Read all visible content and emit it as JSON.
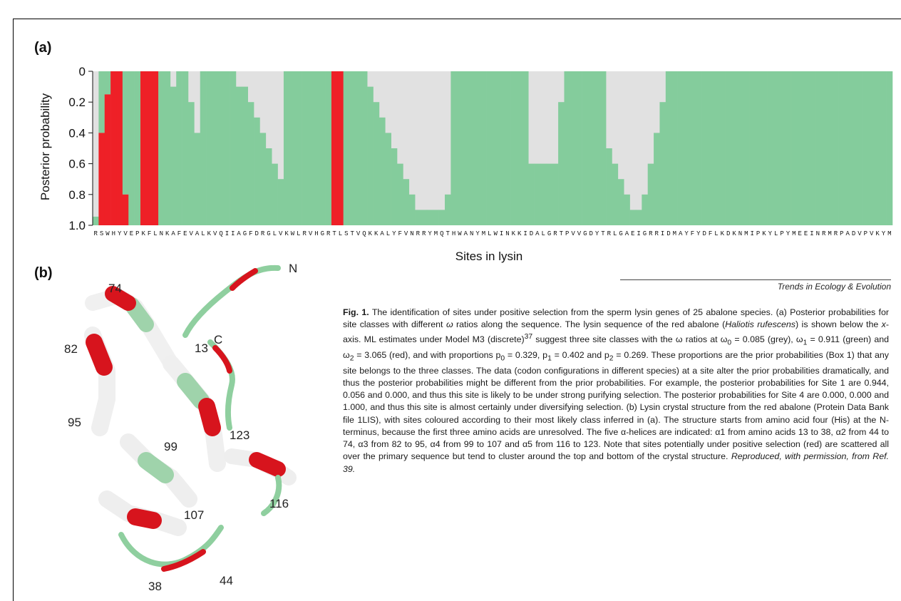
{
  "panel_a_label": "(a)",
  "panel_b_label": "(b)",
  "journal": "Trends in Ecology & Evolution",
  "colors": {
    "grey": "#e1e1e1",
    "green": "#84cc9c",
    "red": "#ee2027",
    "helix_white": "#f1f1f1"
  },
  "chart_data": {
    "type": "bar",
    "stacked": true,
    "ylabel": "Posterior probability",
    "xlabel": "Sites in lysin",
    "yticks": [
      "0",
      "0.2",
      "0.4",
      "0.6",
      "0.8",
      "1.0"
    ],
    "ylim": [
      0,
      1
    ],
    "y_inverted": true,
    "sequence": "RSWHYVEPKFLNKAFEVALKVQIIAGFDRGLVKWLRVHGRTLSTVQKKALYFVNRRYMQTHWANYMLWINKKIDALGRTPVVGDYTRLGAEIGRRIDMAYFYDFLKDKNMIPKYLPYMEEINRMRPADVPVKYM",
    "series": [
      {
        "name": "grey",
        "values": [
          0.944,
          0.0,
          0.0,
          0.0,
          0.0,
          0.0,
          0.0,
          0.0,
          0.0,
          0.0,
          0.0,
          0.0,
          0.0,
          0.1,
          0.0,
          0.0,
          0.2,
          0.4,
          0.0,
          0.0,
          0.0,
          0.0,
          0.0,
          0.0,
          0.1,
          0.1,
          0.2,
          0.3,
          0.4,
          0.5,
          0.6,
          0.7,
          0.0,
          0.0,
          0.0,
          0.0,
          0.0,
          0.0,
          0.0,
          0.0,
          0.0,
          0.0,
          0.0,
          0.0,
          0.0,
          0.0,
          0.1,
          0.2,
          0.3,
          0.4,
          0.5,
          0.6,
          0.7,
          0.8,
          0.9,
          0.9,
          0.9,
          0.9,
          0.9,
          0.8,
          0.0,
          0.0,
          0.0,
          0.0,
          0.0,
          0.0,
          0.0,
          0.0,
          0.0,
          0.0,
          0.0,
          0.0,
          0.0,
          0.6,
          0.6,
          0.6,
          0.6,
          0.6,
          0.2,
          0.0,
          0.0,
          0.0,
          0.0,
          0.0,
          0.0,
          0.0,
          0.5,
          0.6,
          0.7,
          0.8,
          0.9,
          0.9,
          0.8,
          0.6,
          0.4,
          0.2,
          0.0,
          0.0,
          0.0,
          0.0,
          0.0,
          0.0,
          0.0,
          0.0,
          0.0,
          0.0,
          0.0,
          0.0,
          0.0,
          0.0,
          0.0,
          0.0,
          0.0,
          0.0,
          0.0,
          0.0,
          0.0,
          0.0,
          0.0,
          0.0,
          0.0,
          0.0,
          0.0,
          0.0,
          0.0,
          0.0,
          0.0,
          0.0,
          0.0,
          0.0,
          0.0,
          0.0,
          0.0,
          0.0,
          0.0,
          0.0
        ]
      },
      {
        "name": "green",
        "values": [
          0.056,
          0.0,
          0.0,
          0.0,
          0.0,
          0.0,
          0.0,
          0.0,
          0.0,
          0.0,
          0.0,
          0.0,
          0.0,
          0.0,
          0.0,
          0.0,
          0.0,
          0.0,
          0.0,
          0.0,
          0.0,
          0.0,
          0.0,
          0.0,
          0.0,
          0.0,
          0.0,
          0.0,
          0.0,
          0.0,
          0.0,
          0.0,
          0.0,
          0.0,
          0.0,
          0.0,
          0.0,
          0.0,
          0.0,
          0.0,
          0.0,
          0.0,
          0.0,
          0.0,
          0.0,
          0.0,
          0.0,
          0.0,
          0.0,
          0.0,
          0.0,
          0.0,
          0.0,
          0.0,
          0.0,
          0.0,
          0.0,
          0.0,
          0.0,
          0.0,
          0.0,
          0.0,
          0.0,
          0.0,
          0.0,
          0.0,
          0.0,
          0.0,
          0.0,
          0.0,
          0.0,
          0.0,
          0.0,
          0.0,
          0.0,
          0.0,
          0.0,
          0.0,
          0.0,
          0.0,
          0.0,
          0.0,
          0.0,
          0.0,
          0.0,
          0.0,
          0.0,
          0.0,
          0.0,
          0.0,
          0.0,
          0.0,
          0.0,
          0.0,
          0.0,
          0.0,
          0.0,
          0.0,
          0.0,
          0.0,
          0.0,
          0.0,
          0.0,
          0.0,
          0.0,
          0.0,
          0.0,
          0.0,
          0.0,
          0.0,
          0.0,
          0.0,
          0.0,
          0.0,
          0.0,
          0.0,
          0.0,
          0.0,
          0.0,
          0.0,
          0.0,
          0.0,
          0.0,
          0.0,
          0.0,
          0.0,
          0.0,
          0.0,
          0.0,
          0.0,
          0.0,
          0.0,
          0.0,
          0.0,
          0.0,
          0.0
        ]
      },
      {
        "name": "red",
        "values": [
          0.0,
          0.6,
          0.85,
          1.0,
          1.0,
          0.2,
          0.0,
          0.0,
          1.0,
          1.0,
          1.0,
          0.0,
          0.0,
          0.0,
          0.0,
          0.0,
          0.0,
          0.0,
          0.0,
          0.0,
          0.0,
          0.0,
          0.0,
          0.0,
          0.0,
          0.0,
          0.0,
          0.0,
          0.0,
          0.0,
          0.0,
          0.0,
          0.0,
          0.0,
          0.0,
          0.0,
          0.0,
          0.0,
          0.0,
          0.0,
          1.0,
          1.0,
          0.0,
          0.0,
          0.0,
          0.0,
          0.0,
          0.0,
          0.0,
          0.0,
          0.0,
          0.0,
          0.0,
          0.0,
          0.0,
          0.0,
          0.0,
          0.0,
          0.0,
          0.0,
          0.0,
          0.0,
          0.0,
          0.0,
          0.0,
          0.0,
          0.0,
          0.0,
          0.0,
          0.0,
          0.0,
          0.0,
          0.0,
          0.0,
          0.0,
          0.0,
          0.0,
          0.0,
          0.0,
          0.0,
          0.0,
          0.0,
          0.0,
          0.0,
          0.0,
          0.0,
          0.0,
          0.0,
          0.0,
          0.0,
          0.0,
          0.0,
          0.0,
          0.0,
          0.0,
          0.0,
          0.0,
          0.0,
          0.0,
          0.0,
          0.0,
          0.0,
          0.0,
          0.0,
          0.0,
          0.0,
          0.0,
          0.0,
          0.0,
          0.0,
          0.0,
          0.0,
          0.0,
          0.0,
          0.0,
          0.0,
          0.0,
          0.0,
          0.0,
          0.0,
          0.0,
          0.0,
          0.0,
          0.0,
          0.0,
          0.0,
          0.0,
          0.0,
          0.0,
          0.0,
          0.0,
          0.0,
          0.0,
          0.0,
          0.0,
          0.0,
          0.0
        ]
      }
    ]
  },
  "structure_labels": [
    "74",
    "N",
    "13",
    "C",
    "82",
    "95",
    "99",
    "123",
    "116",
    "107",
    "38",
    "44"
  ],
  "caption": {
    "fig": "Fig. 1.",
    "p1": " The identification of sites under positive selection from the sperm lysin genes of 25 abalone species. (a) Posterior probabilities for site classes with different ",
    "omega": "ω",
    "p2": " ratios along the sequence. The lysin sequence of the red abalone (",
    "species": "Haliotis rufescens",
    "p3": ") is shown below the ",
    "xaxis": "x",
    "p4": "-axis. ML estimates under Model M3 (discrete)",
    "ref37": "37",
    "p5": " suggest three site classes with the ω ratios at ω",
    "s0": "0",
    "p6": " = 0.085 (grey), ω",
    "s1": "1",
    "p7": " = 0.911 (green) and ω",
    "s2": "2",
    "p8": " = 3.065 (red), and with proportions p",
    "p9": " = 0.329, p",
    "p10": " = 0.402 and p",
    "p11": " = 0.269. These proportions are the prior probabilities (Box 1) that any site belongs to the three classes. The data (codon configurations in different species) at a site alter the prior probabilities dramatically, and thus the posterior probabilities might be different from the prior probabilities. For example, the posterior probabilities for Site 1 are 0.944, 0.056 and 0.000, and thus this site is likely to be under strong purifying selection. The posterior probabilities for Site 4 are 0.000, 0.000 and 1.000, and thus this site is almost certainly under diversifying selection. (b) Lysin crystal structure from the red abalone (Protein Data Bank file 1LIS), with sites coloured according to their most likely class inferred in (a). The structure starts from amino acid four (His) at the N-terminus, because the first three amino acids are unresolved. The five α-helices are indicated: α1 from amino acids 13 to 38, α2 from 44 to 74, α3 from 82 to 95, α4 from 99 to 107 and α5 from 116 to 123. Note that sites potentially under positive selection (red) are scattered all over the primary sequence but tend to cluster around the top and bottom of the crystal structure. ",
    "repro": "Reproduced, with permission, from Ref. 39."
  }
}
